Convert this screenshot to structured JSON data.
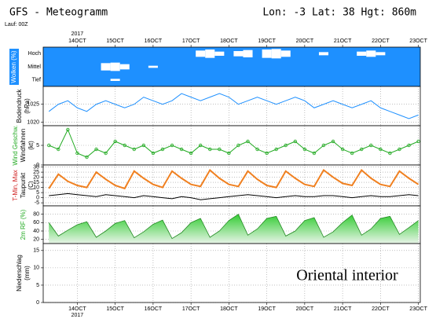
{
  "header": {
    "title": "GFS - Meteogramm",
    "location": "Lon: -3 Lat: 38 Hgt: 860m",
    "run": "Lauf: 00Z"
  },
  "annotation": "Oriental interior",
  "chart_data": [
    {
      "type": "clouds",
      "ylabel": [
        "Wolken (%)"
      ],
      "ylabel_colors": [
        "#ffffff"
      ],
      "background": "#1e90ff",
      "year": "2017",
      "xlim": [
        13.1,
        23.05
      ],
      "xticks": [
        {
          "value": 14,
          "label": "14OCT"
        },
        {
          "value": 15,
          "label": "15OCT"
        },
        {
          "value": 16,
          "label": "16OCT"
        },
        {
          "value": 17,
          "label": "17OCT"
        },
        {
          "value": 18,
          "label": "18OCT"
        },
        {
          "value": 19,
          "label": "19OCT"
        },
        {
          "value": 20,
          "label": "20OCT"
        },
        {
          "value": 21,
          "label": "21OCT"
        },
        {
          "value": 22,
          "label": "22OCT"
        },
        {
          "value": 23,
          "label": "23OCT"
        }
      ],
      "grid": false,
      "x": [
        13.25,
        13.5,
        13.75,
        14,
        14.25,
        14.5,
        14.75,
        15,
        15.25,
        15.5,
        15.75,
        16,
        16.25,
        16.5,
        16.75,
        17,
        17.25,
        17.5,
        17.75,
        18,
        18.25,
        18.5,
        18.75,
        19,
        19.25,
        19.5,
        19.75,
        20,
        20.25,
        20.5,
        20.75,
        21,
        21.25,
        21.5,
        21.75,
        22,
        22.25,
        22.5,
        22.75,
        23
      ],
      "series": [
        {
          "name": "Hoch",
          "color": "#ffffff",
          "values": [
            0,
            0,
            0,
            0,
            0,
            0,
            0,
            0,
            0,
            0,
            0,
            0,
            0,
            0,
            0,
            0,
            60,
            80,
            40,
            0,
            50,
            70,
            0,
            80,
            90,
            60,
            0,
            0,
            0,
            30,
            0,
            0,
            0,
            40,
            60,
            30,
            0,
            0,
            0,
            0
          ]
        },
        {
          "name": "Mittel",
          "color": "#ffffff",
          "values": [
            0,
            0,
            0,
            0,
            0,
            0,
            70,
            80,
            50,
            0,
            0,
            20,
            0,
            0,
            0,
            0,
            0,
            0,
            0,
            0,
            0,
            0,
            0,
            0,
            0,
            0,
            0,
            0,
            0,
            0,
            0,
            0,
            0,
            0,
            0,
            0,
            0,
            0,
            0,
            0
          ]
        },
        {
          "name": "Tief",
          "color": "#ffffff",
          "values": [
            0,
            0,
            0,
            0,
            0,
            0,
            0,
            20,
            0,
            0,
            0,
            0,
            0,
            0,
            0,
            0,
            0,
            0,
            0,
            0,
            0,
            0,
            0,
            0,
            0,
            0,
            0,
            0,
            0,
            0,
            0,
            0,
            0,
            0,
            0,
            0,
            0,
            0,
            0,
            0
          ]
        }
      ]
    },
    {
      "type": "line",
      "ylabel": [
        "Bodendruck",
        "(hPa)"
      ],
      "ylabel_colors": [
        "#000000",
        "#000000"
      ],
      "xlim": [
        13.1,
        23.05
      ],
      "xticks": [
        14,
        15,
        16,
        17,
        18,
        19,
        20,
        21,
        22,
        23
      ],
      "grid": true,
      "ylim": [
        1019,
        1030
      ],
      "yticks": [
        1020,
        1025
      ],
      "x": [
        13.25,
        13.5,
        13.75,
        14,
        14.25,
        14.5,
        14.75,
        15,
        15.25,
        15.5,
        15.75,
        16,
        16.25,
        16.5,
        16.75,
        17,
        17.25,
        17.5,
        17.75,
        18,
        18.25,
        18.5,
        18.75,
        19,
        19.25,
        19.5,
        19.75,
        20,
        20.25,
        20.5,
        20.75,
        21,
        21.25,
        21.5,
        21.75,
        22,
        22.25,
        22.5,
        22.75,
        23
      ],
      "series": [
        {
          "name": "Bodendruck",
          "color": "#1e90ff",
          "values": [
            1023,
            1025,
            1026,
            1024,
            1023,
            1025,
            1026,
            1025,
            1024,
            1025,
            1027,
            1026,
            1025,
            1026,
            1028,
            1027,
            1026,
            1027,
            1028,
            1027,
            1025,
            1026,
            1027,
            1026,
            1025,
            1026,
            1027,
            1026,
            1024,
            1025,
            1026,
            1025,
            1024,
            1025,
            1026,
            1024,
            1023,
            1022,
            1021,
            1022
          ]
        }
      ]
    },
    {
      "type": "line",
      "markers": true,
      "ylabel": [
        "Wind Geschw.",
        "Windfahnen",
        "(kt)"
      ],
      "ylabel_colors": [
        "#22aa22",
        "#000000",
        "#000000"
      ],
      "xlim": [
        13.1,
        23.05
      ],
      "xticks": [
        14,
        15,
        16,
        17,
        18,
        19,
        20,
        21,
        22,
        23
      ],
      "grid": true,
      "ylim": [
        0,
        10
      ],
      "yticks": [
        0,
        5
      ],
      "x": [
        13.25,
        13.5,
        13.75,
        14,
        14.25,
        14.5,
        14.75,
        15,
        15.25,
        15.5,
        15.75,
        16,
        16.25,
        16.5,
        16.75,
        17,
        17.25,
        17.5,
        17.75,
        18,
        18.25,
        18.5,
        18.75,
        19,
        19.25,
        19.5,
        19.75,
        20,
        20.25,
        20.5,
        20.75,
        21,
        21.25,
        21.5,
        21.75,
        22,
        22.25,
        22.5,
        22.75,
        23
      ],
      "series": [
        {
          "name": "Wind Geschw.",
          "color": "#22aa22",
          "values": [
            5,
            4,
            9,
            3,
            2,
            4,
            3,
            6,
            5,
            4,
            5,
            3,
            4,
            5,
            4,
            3,
            5,
            4,
            4,
            3,
            5,
            6,
            4,
            3,
            4,
            5,
            6,
            4,
            3,
            5,
            6,
            4,
            3,
            4,
            5,
            4,
            3,
            4,
            5,
            6
          ]
        }
      ]
    },
    {
      "type": "line",
      "ylabel": [
        "T-Min, Max",
        "Taupunkt",
        "(C)"
      ],
      "ylabel_colors": [
        "#d02020",
        "#000000",
        "#000000"
      ],
      "xlim": [
        13.1,
        23.05
      ],
      "xticks": [
        14,
        15,
        16,
        17,
        18,
        19,
        20,
        21,
        22,
        23
      ],
      "grid": true,
      "ylim": [
        -8,
        32
      ],
      "yticks": [
        30,
        25,
        20,
        15,
        10,
        5,
        0,
        -5
      ],
      "x": [
        13.25,
        13.5,
        13.75,
        14,
        14.25,
        14.5,
        14.75,
        15,
        15.25,
        15.5,
        15.75,
        16,
        16.25,
        16.5,
        16.75,
        17,
        17.25,
        17.5,
        17.75,
        18,
        18.25,
        18.5,
        18.75,
        19,
        19.25,
        19.5,
        19.75,
        20,
        20.25,
        20.5,
        20.75,
        21,
        21.25,
        21.5,
        21.75,
        22,
        22.25,
        22.5,
        22.75,
        23
      ],
      "series": [
        {
          "name": "T-Min, Max",
          "color": "#f08020",
          "values": [
            9,
            23,
            16,
            12,
            10,
            25,
            18,
            12,
            9,
            26,
            19,
            13,
            10,
            26,
            19,
            13,
            11,
            27,
            19,
            13,
            11,
            26,
            18,
            12,
            10,
            26,
            19,
            13,
            11,
            27,
            20,
            14,
            12,
            27,
            19,
            13,
            11,
            26,
            19,
            13
          ]
        },
        {
          "name": "Taupunkt",
          "color": "#000000",
          "values": [
            2,
            3,
            4,
            3,
            2,
            1,
            3,
            2,
            1,
            0,
            2,
            1,
            0,
            -1,
            1,
            0,
            -2,
            -1,
            0,
            1,
            2,
            3,
            2,
            1,
            0,
            1,
            2,
            1,
            1,
            2,
            2,
            1,
            0,
            1,
            2,
            1,
            1,
            2,
            3,
            2
          ]
        }
      ]
    },
    {
      "type": "area",
      "ylabel": [
        "2m RF (%)"
      ],
      "ylabel_colors": [
        "#22aa22"
      ],
      "xlim": [
        13.1,
        23.05
      ],
      "xticks": [
        14,
        15,
        16,
        17,
        18,
        19,
        20,
        21,
        22,
        23
      ],
      "grid": true,
      "ylim": [
        10,
        100
      ],
      "yticks": [
        20,
        40,
        60,
        80
      ],
      "x": [
        13.25,
        13.5,
        13.75,
        14,
        14.25,
        14.5,
        14.75,
        15,
        15.25,
        15.5,
        15.75,
        16,
        16.25,
        16.5,
        16.75,
        17,
        17.25,
        17.5,
        17.75,
        18,
        18.25,
        18.5,
        18.75,
        19,
        19.25,
        19.5,
        19.75,
        20,
        20.25,
        20.5,
        20.75,
        21,
        21.25,
        21.5,
        21.75,
        22,
        22.25,
        22.5,
        22.75,
        23
      ],
      "series": [
        {
          "name": "2m RF",
          "color": "#44bb44",
          "values": [
            60,
            28,
            42,
            55,
            62,
            25,
            40,
            58,
            65,
            24,
            38,
            56,
            66,
            22,
            36,
            60,
            70,
            25,
            40,
            65,
            80,
            30,
            45,
            70,
            75,
            28,
            40,
            65,
            72,
            25,
            38,
            60,
            78,
            30,
            45,
            70,
            75,
            32,
            48,
            65
          ]
        }
      ]
    },
    {
      "type": "bar",
      "ylabel": [
        "Niederschlag",
        "(mm)"
      ],
      "ylabel_colors": [
        "#000000",
        "#000000"
      ],
      "year": "2017",
      "xlim": [
        13.1,
        23.05
      ],
      "xticks": [
        {
          "value": 14,
          "label": "14OCT"
        },
        {
          "value": 15,
          "label": "15OCT"
        },
        {
          "value": 16,
          "label": "16OCT"
        },
        {
          "value": 17,
          "label": "17OCT"
        },
        {
          "value": 18,
          "label": "18OCT"
        },
        {
          "value": 19,
          "label": "19OCT"
        },
        {
          "value": 20,
          "label": "20OCT"
        },
        {
          "value": 21,
          "label": "21OCT"
        },
        {
          "value": 22,
          "label": "22OCT"
        },
        {
          "value": 23,
          "label": "23OCT"
        }
      ],
      "grid": true,
      "ylim": [
        0,
        17
      ],
      "yticks": [
        0,
        5,
        10,
        15
      ],
      "x": [
        13.25,
        13.5,
        13.75,
        14,
        14.25,
        14.5,
        14.75,
        15,
        15.25,
        15.5,
        15.75,
        16,
        16.25,
        16.5,
        16.75,
        17,
        17.25,
        17.5,
        17.75,
        18,
        18.25,
        18.5,
        18.75,
        19,
        19.25,
        19.5,
        19.75,
        20,
        20.25,
        20.5,
        20.75,
        21,
        21.25,
        21.5,
        21.75,
        22,
        22.25,
        22.5,
        22.75,
        23
      ],
      "series": [
        {
          "name": "Niederschlag",
          "color": "#1e90ff",
          "values": [
            0,
            0,
            0,
            0,
            0,
            0,
            0,
            0,
            0,
            0,
            0,
            0,
            0,
            0,
            0,
            0,
            0,
            0,
            0,
            0,
            0,
            0,
            0,
            0,
            0,
            0,
            0,
            0,
            0,
            0,
            0,
            0,
            0,
            0,
            0,
            0,
            0,
            0,
            0,
            0
          ]
        }
      ]
    }
  ]
}
